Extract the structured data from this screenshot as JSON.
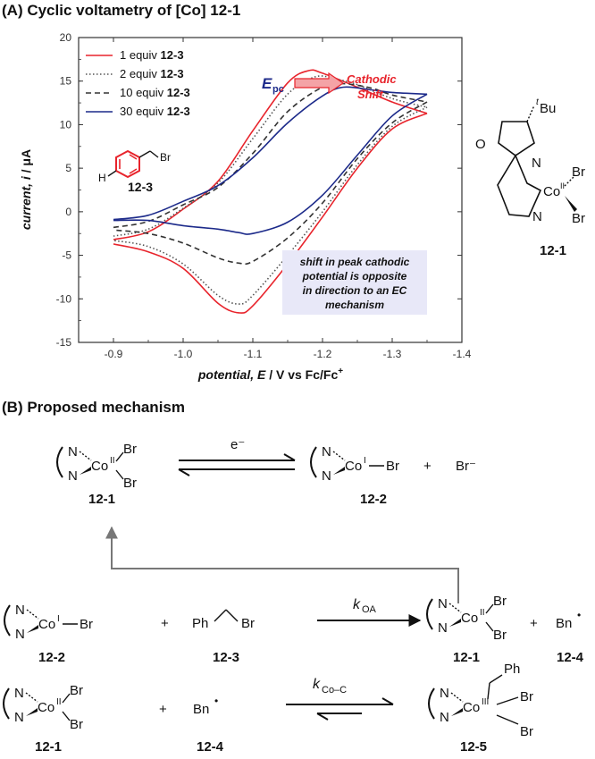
{
  "panel_a": {
    "heading": "(A) Cyclic voltametry of [Co] 12-1",
    "ylabel_html": "<tspan font-style='italic' font-weight='bold'>current, i</tspan><tspan font-weight='bold'> / μA</tspan>",
    "xlabel_prefix": "potential, E",
    "xlabel_suffix": " / V vs Fc/Fc",
    "xlabel_sup": "+",
    "epc_main": "E",
    "epc_sub": "pc",
    "shift_line1": "Cathodic",
    "shift_line2": "Shift",
    "note": [
      "shift in peak cathodic",
      "potential is opposite",
      "in direction to an EC",
      "mechanism"
    ],
    "inset_label": "12-3",
    "inset_br": "Br",
    "inset_h": "H",
    "complex_label": "12-1",
    "complex_tbu_sup": "t",
    "complex_tbu": "Bu",
    "complex_o": "O",
    "complex_n1": "N",
    "complex_n2": "N",
    "complex_co": "Co",
    "complex_co_ox": "II",
    "complex_br1": "Br",
    "complex_br2": "Br"
  },
  "chart_data": {
    "type": "line",
    "xlabel": "potential, E / V vs Fc/Fc+",
    "ylabel": "current, i / μA",
    "xlim": [
      -0.85,
      -1.4
    ],
    "ylim": [
      -15,
      20
    ],
    "xticks": [
      -0.9,
      -1.0,
      -1.1,
      -1.2,
      -1.3,
      -1.4
    ],
    "xtick_labels": [
      "-0.9",
      "-1.0",
      "-1.1",
      "-1.2",
      "-1.3",
      "-1.4"
    ],
    "yticks": [
      -15,
      -10,
      -5,
      0,
      5,
      10,
      15,
      20
    ],
    "ytick_labels": [
      "-15",
      "-10",
      "-5",
      "0",
      "5",
      "10",
      "15",
      "20"
    ],
    "legend_position": "top-left",
    "series": [
      {
        "name": "1 equiv 12-3",
        "legend_pre": "1 equiv ",
        "legend_bold": "12-3",
        "color": "#e8242c",
        "dash": "solid",
        "fwd": [
          [
            -0.9,
            -3.2
          ],
          [
            -0.95,
            -2.3
          ],
          [
            -1.0,
            0.3
          ],
          [
            -1.05,
            3.5
          ],
          [
            -1.1,
            9.3
          ],
          [
            -1.15,
            14.8
          ],
          [
            -1.18,
            16.2
          ],
          [
            -1.2,
            15.9
          ],
          [
            -1.25,
            14.3
          ],
          [
            -1.3,
            12.6
          ],
          [
            -1.35,
            11.3
          ]
        ],
        "rev": [
          [
            -1.35,
            11.3
          ],
          [
            -1.3,
            9.5
          ],
          [
            -1.25,
            5.0
          ],
          [
            -1.2,
            -0.6
          ],
          [
            -1.15,
            -6.0
          ],
          [
            -1.1,
            -10.8
          ],
          [
            -1.08,
            -11.6
          ],
          [
            -1.05,
            -10.5
          ],
          [
            -1.0,
            -6.5
          ],
          [
            -0.95,
            -4.6
          ],
          [
            -0.9,
            -3.7
          ]
        ]
      },
      {
        "name": "2 equiv 12-3",
        "legend_pre": "2 equiv ",
        "legend_bold": "12-3",
        "color": "#555555",
        "dash": "dotted",
        "fwd": [
          [
            -0.9,
            -2.8
          ],
          [
            -0.95,
            -2.0
          ],
          [
            -1.0,
            0.4
          ],
          [
            -1.05,
            3.3
          ],
          [
            -1.1,
            8.4
          ],
          [
            -1.15,
            13.5
          ],
          [
            -1.19,
            15.5
          ],
          [
            -1.22,
            15.2
          ],
          [
            -1.25,
            14.6
          ],
          [
            -1.3,
            13.0
          ],
          [
            -1.35,
            12.0
          ]
        ],
        "rev": [
          [
            -1.35,
            12.0
          ],
          [
            -1.3,
            9.8
          ],
          [
            -1.25,
            5.4
          ],
          [
            -1.2,
            0.0
          ],
          [
            -1.15,
            -5.0
          ],
          [
            -1.1,
            -9.6
          ],
          [
            -1.08,
            -10.6
          ],
          [
            -1.05,
            -9.6
          ],
          [
            -1.0,
            -6.0
          ],
          [
            -0.95,
            -4.0
          ],
          [
            -0.9,
            -3.3
          ]
        ]
      },
      {
        "name": "10 equiv 12-3",
        "legend_pre": "10 equiv ",
        "legend_bold": "12-3",
        "color": "#333333",
        "dash": "dashed",
        "fwd": [
          [
            -0.9,
            -1.8
          ],
          [
            -0.95,
            -1.1
          ],
          [
            -1.0,
            0.8
          ],
          [
            -1.05,
            2.8
          ],
          [
            -1.1,
            6.7
          ],
          [
            -1.15,
            11.5
          ],
          [
            -1.2,
            14.3
          ],
          [
            -1.23,
            14.7
          ],
          [
            -1.27,
            14.2
          ],
          [
            -1.3,
            13.4
          ],
          [
            -1.35,
            12.6
          ]
        ],
        "rev": [
          [
            -1.35,
            12.6
          ],
          [
            -1.3,
            10.2
          ],
          [
            -1.25,
            6.1
          ],
          [
            -1.2,
            1.0
          ],
          [
            -1.15,
            -3.0
          ],
          [
            -1.1,
            -5.7
          ],
          [
            -1.08,
            -5.9
          ],
          [
            -1.05,
            -5.3
          ],
          [
            -1.0,
            -3.6
          ],
          [
            -0.95,
            -2.5
          ],
          [
            -0.9,
            -2.1
          ]
        ]
      },
      {
        "name": "30 equiv 12-3",
        "legend_pre": "30 equiv ",
        "legend_bold": "12-3",
        "color": "#1c2a8a",
        "dash": "solid",
        "fwd": [
          [
            -0.9,
            -0.9
          ],
          [
            -0.95,
            -0.4
          ],
          [
            -1.0,
            1.2
          ],
          [
            -1.05,
            3.0
          ],
          [
            -1.1,
            6.2
          ],
          [
            -1.15,
            10.2
          ],
          [
            -1.2,
            13.3
          ],
          [
            -1.23,
            14.3
          ],
          [
            -1.27,
            14.0
          ],
          [
            -1.3,
            13.7
          ],
          [
            -1.35,
            13.5
          ]
        ],
        "rev": [
          [
            -1.35,
            13.5
          ],
          [
            -1.3,
            11.0
          ],
          [
            -1.25,
            6.5
          ],
          [
            -1.2,
            1.9
          ],
          [
            -1.15,
            -1.2
          ],
          [
            -1.1,
            -2.5
          ],
          [
            -1.08,
            -2.4
          ],
          [
            -1.05,
            -2.0
          ],
          [
            -1.0,
            -1.6
          ],
          [
            -0.95,
            -1.0
          ],
          [
            -0.9,
            -1.0
          ]
        ]
      }
    ]
  },
  "panel_b": {
    "heading": "(B) Proposed mechanism",
    "electron": "e⁻",
    "k_oa_main": "k",
    "k_oa_sub": "OA",
    "k_coc_main": "k",
    "k_coc_sub": "Co–C",
    "co": "Co",
    "n": "N",
    "br": "Br",
    "ox_ii": "II",
    "ox_i": "I",
    "ox_iii": "III",
    "plus": "+",
    "bromide": "Br⁻",
    "ph": "Ph",
    "bn": "Bn",
    "radical_dot": "•",
    "l_12_1": "12-1",
    "l_12_2": "12-2",
    "l_12_3": "12-3",
    "l_12_4": "12-4",
    "l_12_5": "12-5"
  }
}
